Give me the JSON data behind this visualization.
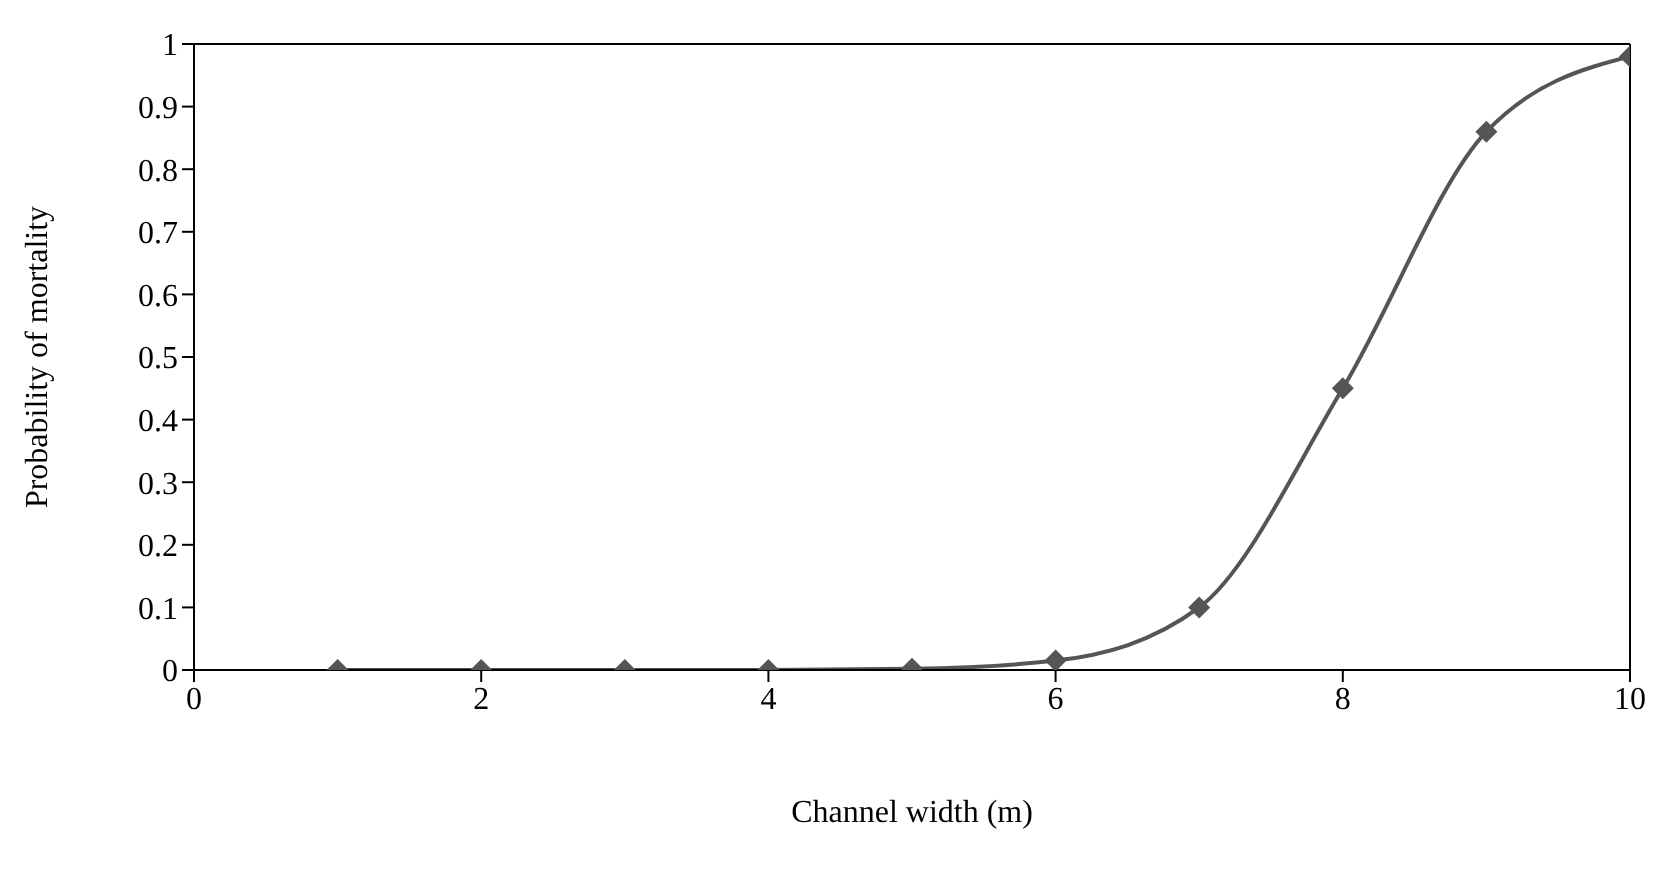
{
  "chart_data": {
    "type": "line",
    "xlabel": "Channel width (m)",
    "ylabel": "Probability of mortality",
    "x": [
      1,
      2,
      3,
      4,
      5,
      6,
      7,
      8,
      9,
      10
    ],
    "series": [
      {
        "color": "#555555",
        "values": [
          0,
          0,
          0,
          0,
          0.002,
          0.015,
          0.1,
          0.45,
          0.86,
          0.98
        ]
      }
    ],
    "xlim": [
      0,
      10
    ],
    "xticks": [
      0,
      2,
      4,
      6,
      8,
      10
    ],
    "ylim": [
      0,
      1
    ],
    "yticks": [
      0,
      0.1,
      0.2,
      0.3,
      0.4,
      0.5,
      0.6,
      0.7,
      0.8,
      0.9,
      1
    ],
    "grid": false,
    "legend": false,
    "marker": "diamond",
    "line_style": "solid"
  }
}
